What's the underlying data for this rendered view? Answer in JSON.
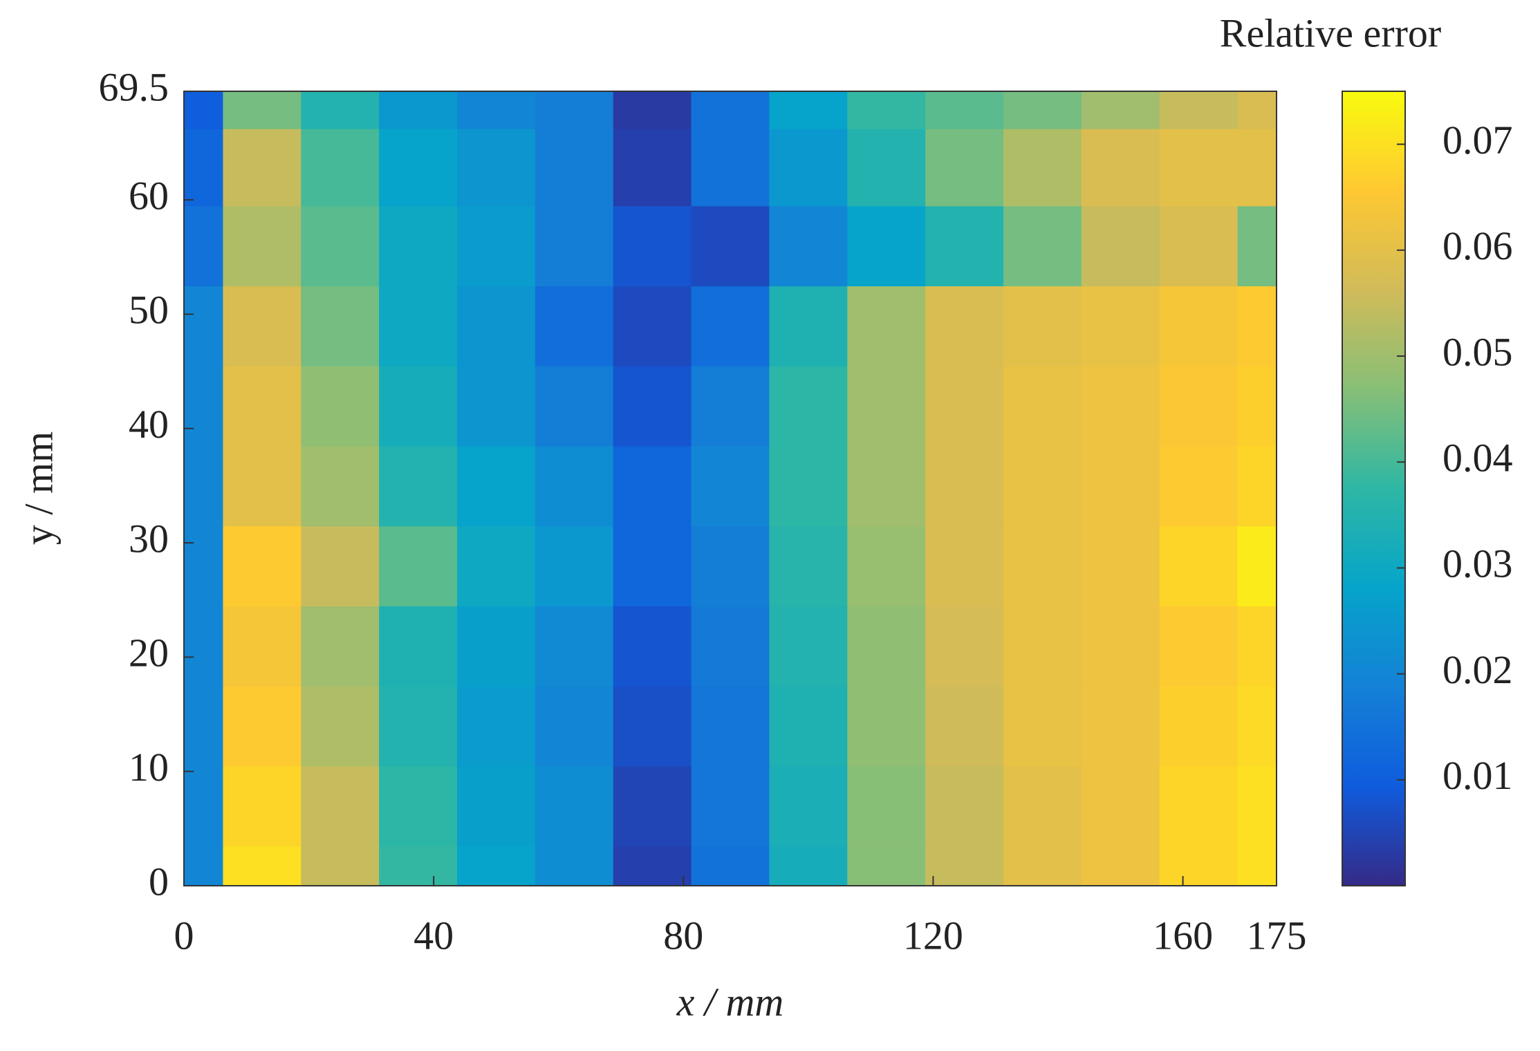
{
  "chart_data": {
    "type": "contour",
    "colorbar_label": "Relative error",
    "xlabel": "x / mm",
    "ylabel": "y / mm",
    "x": [
      0,
      12.5,
      25,
      37.5,
      50,
      62.5,
      75,
      87.5,
      100,
      112.5,
      125,
      137.5,
      150,
      162.5,
      175
    ],
    "y": [
      0,
      7,
      14,
      21,
      28,
      35,
      42,
      49,
      56,
      63,
      69.5
    ],
    "z": [
      [
        0.02,
        0.07,
        0.055,
        0.038,
        0.028,
        0.022,
        0.004,
        0.015,
        0.032,
        0.047,
        0.055,
        0.06,
        0.062,
        0.068,
        0.07
      ],
      [
        0.02,
        0.068,
        0.055,
        0.037,
        0.027,
        0.022,
        0.005,
        0.016,
        0.033,
        0.047,
        0.055,
        0.06,
        0.062,
        0.068,
        0.07
      ],
      [
        0.02,
        0.066,
        0.052,
        0.035,
        0.026,
        0.02,
        0.007,
        0.016,
        0.034,
        0.048,
        0.056,
        0.061,
        0.062,
        0.067,
        0.069
      ],
      [
        0.02,
        0.064,
        0.05,
        0.034,
        0.027,
        0.021,
        0.008,
        0.017,
        0.035,
        0.048,
        0.057,
        0.061,
        0.062,
        0.066,
        0.068
      ],
      [
        0.02,
        0.066,
        0.055,
        0.042,
        0.03,
        0.025,
        0.012,
        0.018,
        0.036,
        0.049,
        0.058,
        0.061,
        0.062,
        0.068,
        0.072
      ],
      [
        0.02,
        0.06,
        0.05,
        0.035,
        0.028,
        0.022,
        0.012,
        0.02,
        0.037,
        0.05,
        0.058,
        0.061,
        0.062,
        0.066,
        0.068
      ],
      [
        0.02,
        0.06,
        0.048,
        0.032,
        0.024,
        0.018,
        0.008,
        0.018,
        0.037,
        0.05,
        0.058,
        0.061,
        0.062,
        0.065,
        0.067
      ],
      [
        0.02,
        0.058,
        0.045,
        0.03,
        0.024,
        0.014,
        0.006,
        0.014,
        0.034,
        0.05,
        0.058,
        0.06,
        0.061,
        0.064,
        0.066
      ],
      [
        0.015,
        0.052,
        0.042,
        0.03,
        0.026,
        0.018,
        0.008,
        0.006,
        0.02,
        0.028,
        0.035,
        0.045,
        0.055,
        0.058,
        0.045
      ],
      [
        0.012,
        0.055,
        0.04,
        0.028,
        0.024,
        0.018,
        0.004,
        0.015,
        0.025,
        0.035,
        0.045,
        0.052,
        0.058,
        0.06,
        0.06
      ],
      [
        0.01,
        0.045,
        0.035,
        0.025,
        0.02,
        0.018,
        0.003,
        0.015,
        0.028,
        0.038,
        0.042,
        0.045,
        0.05,
        0.055,
        0.058
      ]
    ],
    "xlim": [
      0,
      175
    ],
    "ylim": [
      0,
      69.5
    ],
    "clim": [
      0,
      0.075
    ],
    "xticks": [
      0,
      40,
      80,
      120,
      160,
      175
    ],
    "yticks": [
      0,
      10,
      20,
      30,
      40,
      50,
      60,
      69.5
    ],
    "cticks": [
      0.01,
      0.02,
      0.03,
      0.04,
      0.05,
      0.06,
      0.07
    ],
    "colormap": [
      "#352a87",
      "#0f5cdd",
      "#1481d6",
      "#06a4ca",
      "#2eb7a4",
      "#87bf77",
      "#d1bb59",
      "#fec832",
      "#f9fb0e"
    ]
  }
}
